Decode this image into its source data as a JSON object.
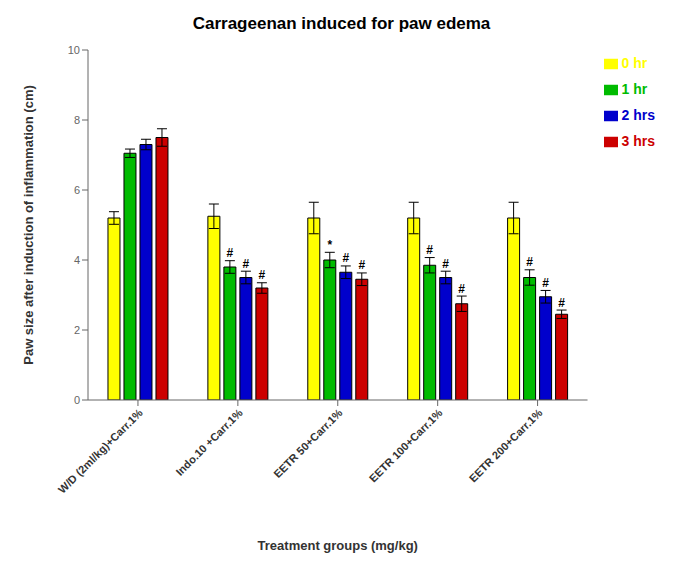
{
  "chart_data": {
    "type": "bar",
    "title": "Carrageenan induced for paw edema",
    "x_label": "Treatment groups (mg/kg)",
    "y_label": "Paw size after induction of inflammation (cm)",
    "categories": [
      "W/D (2ml/kg)+Carr.1%",
      "Indo.10 +Carr.1%",
      "EETR 50+Carr.1%",
      "EETR 100+Carr.1%",
      "EETR 200+Carr.1%"
    ],
    "series": [
      {
        "name": "0 hr",
        "color": "#FFFF00",
        "values": [
          5.2,
          5.25,
          5.2,
          5.2,
          5.2
        ],
        "errors": [
          0.18,
          0.35,
          0.45,
          0.45,
          0.45
        ]
      },
      {
        "name": "1 hr",
        "color": "#00BB00",
        "values": [
          7.05,
          3.8,
          4.0,
          3.85,
          3.5
        ],
        "errors": [
          0.12,
          0.18,
          0.22,
          0.22,
          0.22
        ],
        "significance": [
          null,
          "#",
          "*",
          "#",
          "#"
        ]
      },
      {
        "name": "2 hrs",
        "color": "#0000CC",
        "values": [
          7.3,
          3.5,
          3.65,
          3.5,
          2.95
        ],
        "errors": [
          0.15,
          0.18,
          0.18,
          0.18,
          0.18
        ],
        "significance": [
          null,
          "#",
          "#",
          "#",
          "#"
        ]
      },
      {
        "name": "3 hrs",
        "color": "#CC0000",
        "values": [
          7.5,
          3.2,
          3.45,
          2.75,
          2.45
        ],
        "errors": [
          0.25,
          0.15,
          0.18,
          0.22,
          0.12
        ],
        "significance": [
          null,
          "#",
          "#",
          "#",
          "#"
        ]
      }
    ],
    "ylim": [
      0,
      10
    ],
    "yticks": [
      0,
      2,
      4,
      6,
      8,
      10
    ],
    "grid": false,
    "legend": "upper right"
  }
}
